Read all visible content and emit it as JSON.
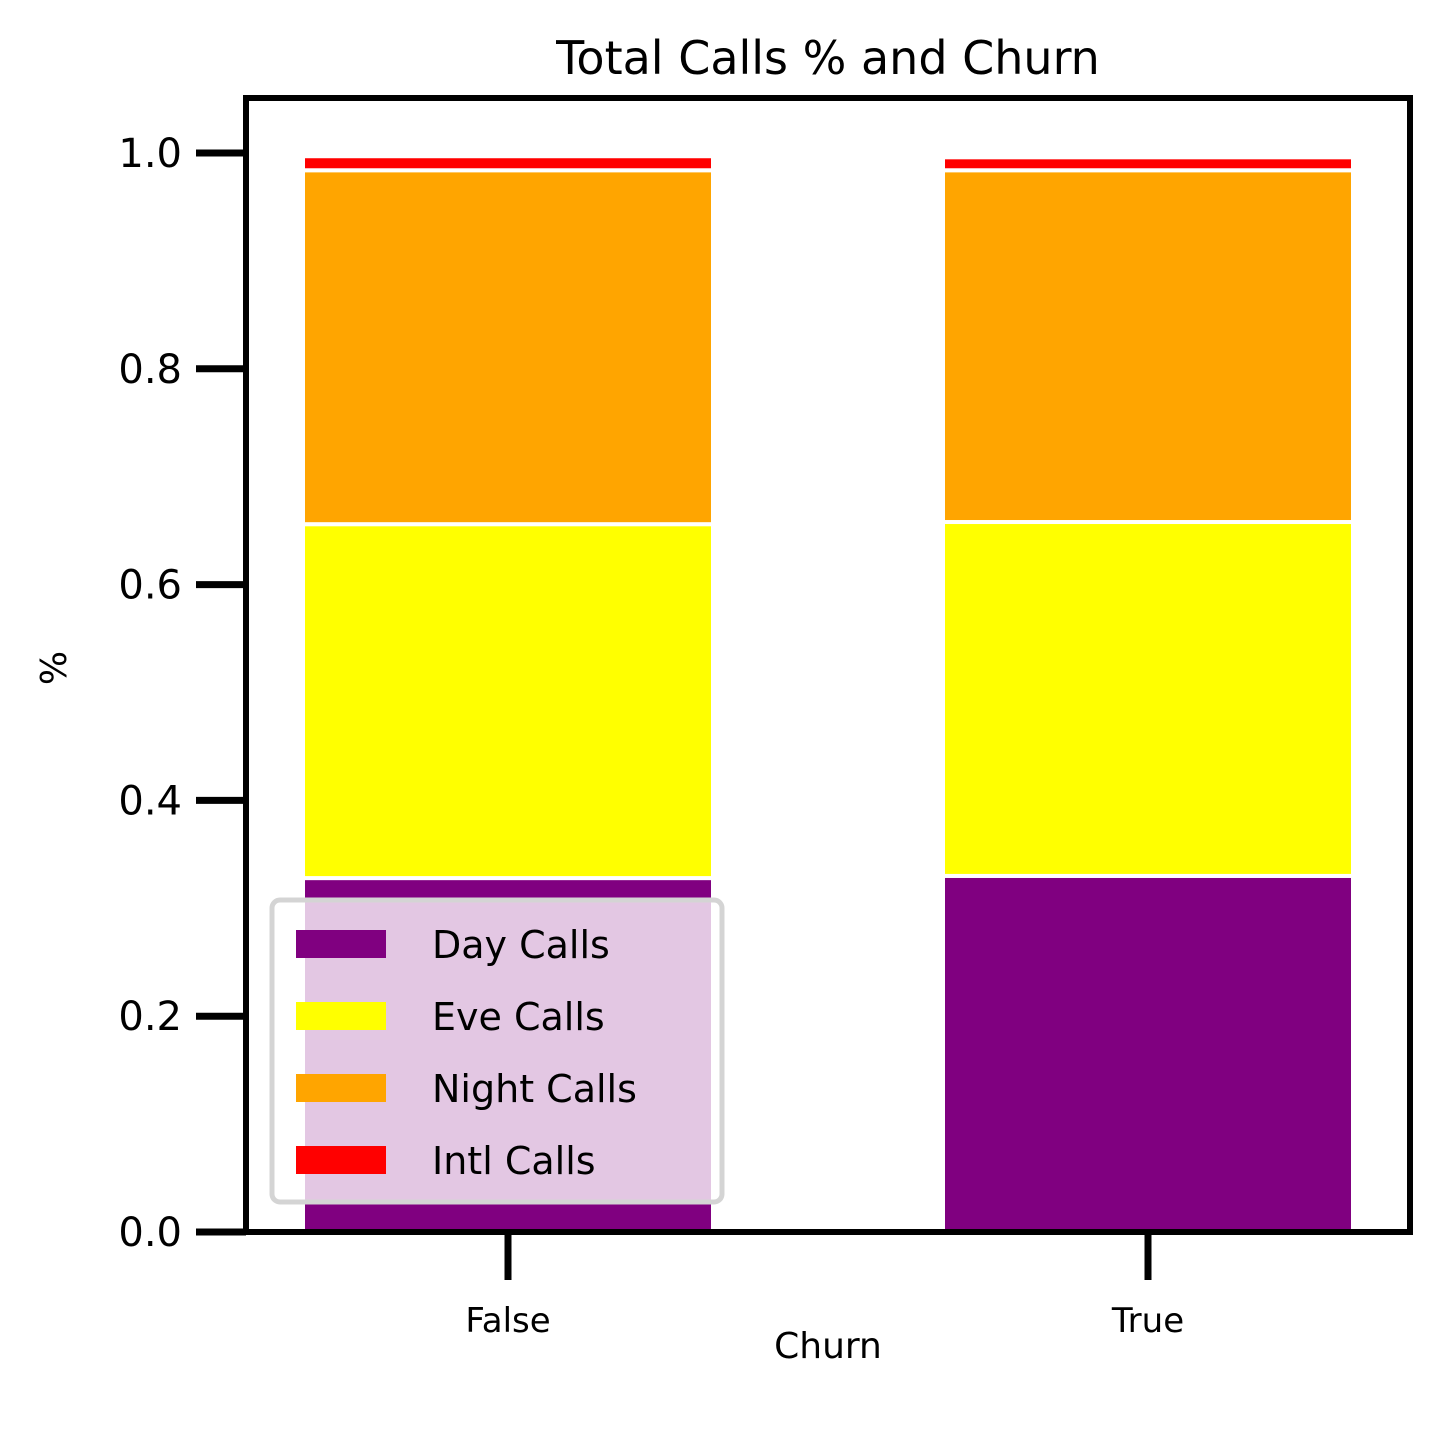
{
  "chart_data": {
    "type": "bar",
    "stacked": true,
    "title": "Total Calls % and Churn",
    "xlabel": "Churn",
    "ylabel": "%",
    "categories": [
      "False",
      "True"
    ],
    "ylim": [
      0,
      1.05
    ],
    "yticks": [
      "0.0",
      "0.2",
      "0.4",
      "0.6",
      "0.8",
      "1.0"
    ],
    "series": [
      {
        "name": "Day Calls",
        "color": "#800080",
        "values": [
          0.328,
          0.33
        ]
      },
      {
        "name": "Eve Calls",
        "color": "#ffff00",
        "values": [
          0.328,
          0.328
        ]
      },
      {
        "name": "Night Calls",
        "color": "#ffa500",
        "values": [
          0.328,
          0.326
        ]
      },
      {
        "name": "Intl Calls",
        "color": "#ff0000",
        "values": [
          0.013,
          0.012
        ]
      }
    ],
    "legend": {
      "position": "lower-left"
    },
    "grid": false
  }
}
